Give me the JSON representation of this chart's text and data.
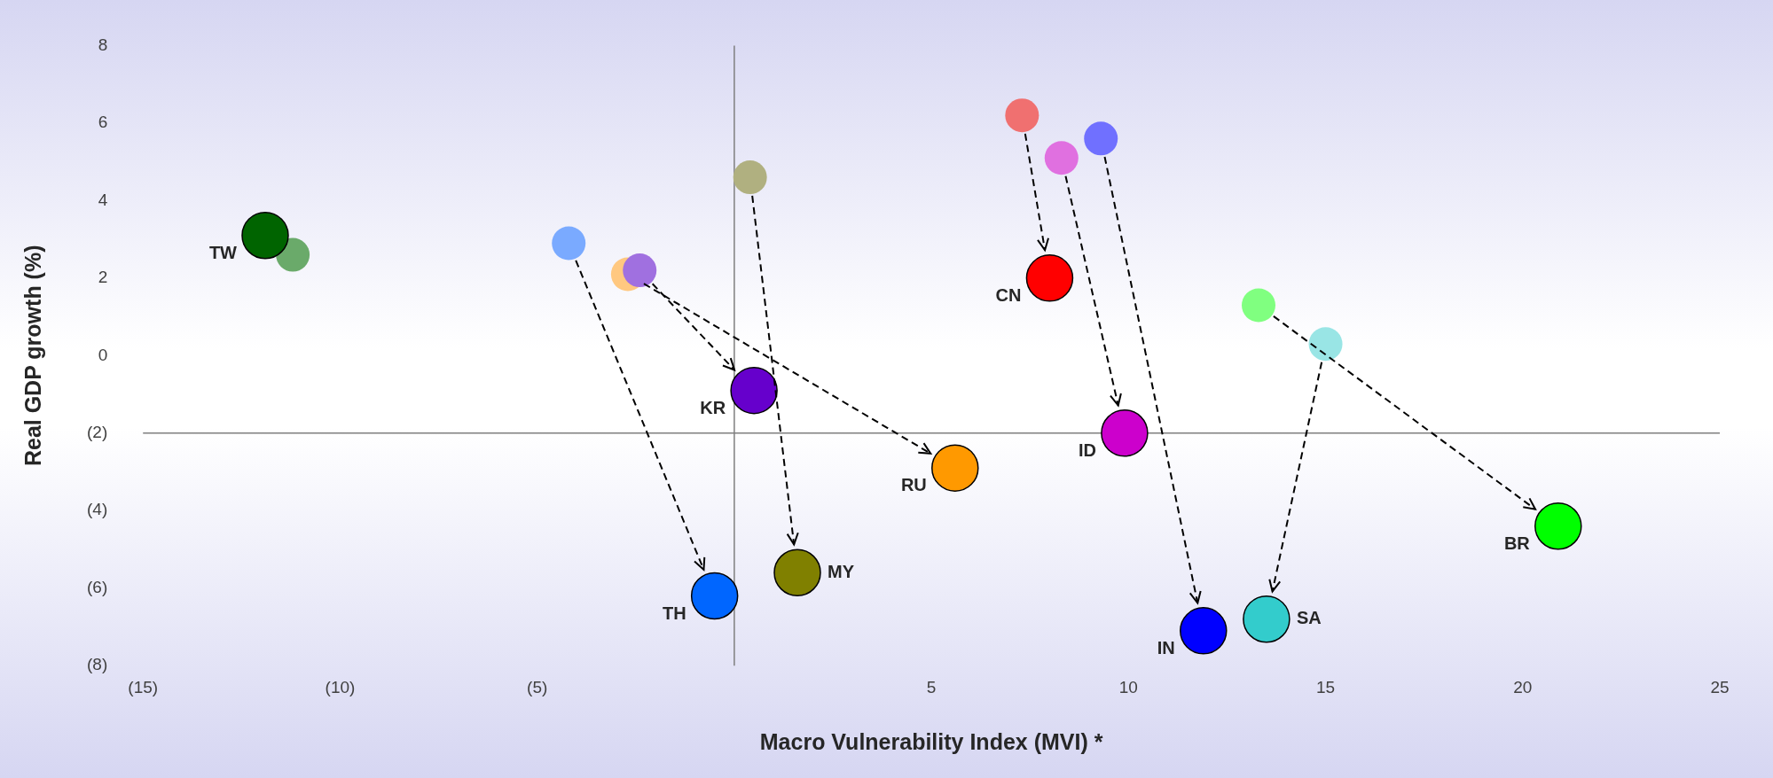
{
  "chart_data": {
    "type": "scatter",
    "xlabel": "Macro Vulnerability Index (MVI) *",
    "ylabel": "Real GDP growth (%)",
    "xlim": [
      -15,
      25
    ],
    "xticks": [
      {
        "value": -15,
        "label": "(15)"
      },
      {
        "value": -10,
        "label": "(10)"
      },
      {
        "value": -5,
        "label": "(5)"
      },
      {
        "value": 0,
        "label": null
      },
      5,
      10,
      15,
      20,
      25
    ],
    "ylim": [
      -8,
      8
    ],
    "yticks": [
      {
        "value": -8,
        "label": "(8)"
      },
      {
        "value": -6,
        "label": "(6)"
      },
      {
        "value": -4,
        "label": "(4)"
      },
      {
        "value": -2,
        "label": "(2)"
      },
      0,
      2,
      4,
      6,
      8
    ],
    "grid": false,
    "legend": false,
    "marker": "circle",
    "ref_lines": [
      {
        "axis": "x",
        "value": 0,
        "color": "#7f7f7f"
      },
      {
        "axis": "y",
        "value": -2,
        "color": "#7f7f7f"
      }
    ],
    "series": [
      {
        "name": "TW",
        "x": [
          -11.2,
          -11.9
        ],
        "values": [
          2.6,
          3.1
        ],
        "colors": [
          "#6aaa6a",
          "#006400"
        ]
      },
      {
        "name": "TH",
        "x": [
          -4.2,
          -0.5
        ],
        "values": [
          2.9,
          -6.2
        ],
        "colors": [
          "#7aaaff",
          "#0066ff"
        ]
      },
      {
        "name": "RU",
        "x": [
          -2.7,
          5.6
        ],
        "values": [
          2.1,
          -2.9
        ],
        "colors": [
          "#ffc880",
          "#ff9900"
        ]
      },
      {
        "name": "KR",
        "x": [
          -2.4,
          0.5
        ],
        "values": [
          2.2,
          -0.9
        ],
        "colors": [
          "#a070e0",
          "#6600cc"
        ]
      },
      {
        "name": "MY",
        "x": [
          0.4,
          1.6
        ],
        "values": [
          4.6,
          -5.6
        ],
        "colors": [
          "#b0b080",
          "#808000"
        ]
      },
      {
        "name": "CN",
        "x": [
          7.3,
          8.0
        ],
        "values": [
          6.2,
          2.0
        ],
        "colors": [
          "#f07070",
          "#ff0000"
        ]
      },
      {
        "name": "ID",
        "x": [
          8.3,
          9.9
        ],
        "values": [
          5.1,
          -2.0
        ],
        "colors": [
          "#e070e0",
          "#cc00cc"
        ]
      },
      {
        "name": "IN",
        "x": [
          9.3,
          11.9
        ],
        "values": [
          5.6,
          -7.1
        ],
        "colors": [
          "#7070ff",
          "#0000ff"
        ]
      },
      {
        "name": "BR",
        "x": [
          13.3,
          20.9
        ],
        "values": [
          1.3,
          -4.4
        ],
        "colors": [
          "#80ff80",
          "#00ff00"
        ]
      },
      {
        "name": "SA",
        "x": [
          15.0,
          13.5
        ],
        "values": [
          0.3,
          -6.8
        ],
        "colors": [
          "#99e5e5",
          "#33cccc"
        ]
      }
    ]
  }
}
